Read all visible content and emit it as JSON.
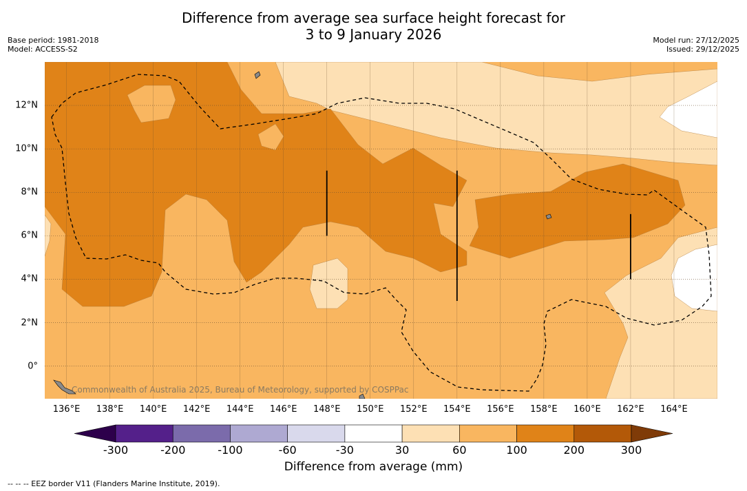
{
  "title": {
    "line1": "Difference from average sea surface height forecast for",
    "line2": "3 to 9 January 2026"
  },
  "meta_left": {
    "base_period": "Base period: 1981-2018",
    "model": "Model: ACCESS-S2"
  },
  "meta_right": {
    "model_run": "Model run: 27/12/2025",
    "issued": "Issued: 29/12/2025"
  },
  "map": {
    "lon_range": [
      135,
      166
    ],
    "lat_range": [
      -1.5,
      14
    ],
    "x_ticks": [
      136,
      138,
      140,
      142,
      144,
      146,
      148,
      150,
      152,
      154,
      156,
      158,
      160,
      162,
      164
    ],
    "x_tick_labels": [
      "136°E",
      "138°E",
      "140°E",
      "142°E",
      "144°E",
      "146°E",
      "148°E",
      "150°E",
      "152°E",
      "154°E",
      "156°E",
      "158°E",
      "160°E",
      "162°E",
      "164°E"
    ],
    "y_ticks": [
      0,
      2,
      4,
      6,
      8,
      10,
      12
    ],
    "y_tick_labels": [
      "0°",
      "2°N",
      "4°N",
      "6°N",
      "8°N",
      "10°N",
      "12°N"
    ],
    "copyright": "Commonwealth of Australia 2025, Bureau of Meteorology, supported by COSPPac",
    "vertical_lines": [
      {
        "lon": 148,
        "lat_from": 6,
        "lat_to": 9
      },
      {
        "lon": 154,
        "lat_from": 3,
        "lat_to": 9
      },
      {
        "lon": 162,
        "lat_from": 4,
        "lat_to": 7
      }
    ]
  },
  "colorbar": {
    "title": "Difference from average (mm)",
    "labels": [
      "-300",
      "-200",
      "-100",
      "-60",
      "-30",
      "30",
      "60",
      "100",
      "200",
      "300"
    ],
    "colors": [
      "#54208a",
      "#7b6bab",
      "#aea9d2",
      "#d9d9ec",
      "#ffffff",
      "#fde0b4",
      "#f9b660",
      "#e08318",
      "#b35908"
    ],
    "extend_low": "#2d004b",
    "extend_high": "#7f3b08"
  },
  "footer": "--  --  -- EEZ border V11 (Flanders Marine Institute, 2019)."
}
